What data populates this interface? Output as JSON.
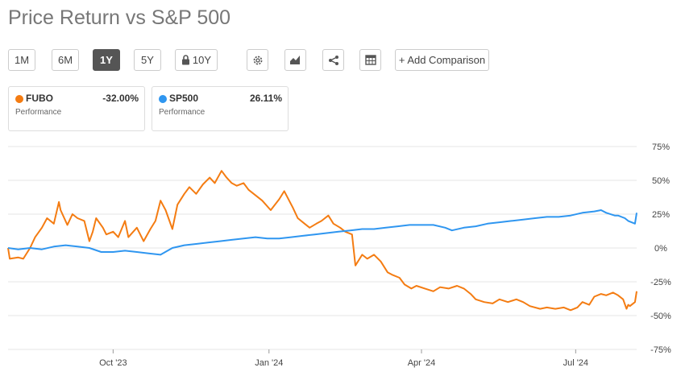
{
  "title": "Price Return vs S&P 500",
  "toolbar": {
    "ranges": [
      {
        "label": "1M",
        "active": false
      },
      {
        "label": "6M",
        "active": false
      },
      {
        "label": "1Y",
        "active": true
      },
      {
        "label": "5Y",
        "active": false
      },
      {
        "label": "10Y",
        "active": false,
        "locked": true
      }
    ],
    "icons": [
      "gear-icon",
      "chart-type-icon",
      "share-icon",
      "table-icon"
    ],
    "add_comparison": "+ Add Comparison"
  },
  "cards": [
    {
      "name": "FUBO",
      "value": "-32.00%",
      "sub": "Performance",
      "color": "#f47c12"
    },
    {
      "name": "SP500",
      "value": "26.11%",
      "sub": "Performance",
      "color": "#2f96f0"
    }
  ],
  "chart_data": {
    "type": "line",
    "x_unit": "date",
    "x_range": [
      "2023-08-01",
      "2024-08-06"
    ],
    "x_ticks": [
      {
        "label": "Oct '23",
        "date": "2023-10-02"
      },
      {
        "label": "Jan '24",
        "date": "2024-01-02"
      },
      {
        "label": "Apr '24",
        "date": "2024-04-01"
      },
      {
        "label": "Jul '24",
        "date": "2024-07-01"
      }
    ],
    "ylim": [
      -75,
      75
    ],
    "y_ticks": [
      75,
      50,
      25,
      0,
      -25,
      -50,
      -75
    ],
    "y_tick_labels": [
      "75%",
      "50%",
      "25%",
      "0%",
      "-25%",
      "-50%",
      "-75%"
    ],
    "grid": true,
    "series": [
      {
        "name": "FUBO",
        "color": "#f47c12",
        "points": [
          [
            "2023-08-01",
            0
          ],
          [
            "2023-08-02",
            -8
          ],
          [
            "2023-08-07",
            -7
          ],
          [
            "2023-08-10",
            -8
          ],
          [
            "2023-08-14",
            0
          ],
          [
            "2023-08-17",
            8
          ],
          [
            "2023-08-21",
            15
          ],
          [
            "2023-08-24",
            22
          ],
          [
            "2023-08-28",
            18
          ],
          [
            "2023-08-31",
            34
          ],
          [
            "2023-09-01",
            28
          ],
          [
            "2023-09-05",
            17
          ],
          [
            "2023-09-08",
            25
          ],
          [
            "2023-09-11",
            22
          ],
          [
            "2023-09-15",
            20
          ],
          [
            "2023-09-18",
            5
          ],
          [
            "2023-09-20",
            12
          ],
          [
            "2023-09-22",
            22
          ],
          [
            "2023-09-26",
            15
          ],
          [
            "2023-09-28",
            10
          ],
          [
            "2023-10-02",
            12
          ],
          [
            "2023-10-05",
            8
          ],
          [
            "2023-10-09",
            20
          ],
          [
            "2023-10-11",
            8
          ],
          [
            "2023-10-16",
            15
          ],
          [
            "2023-10-20",
            5
          ],
          [
            "2023-10-24",
            14
          ],
          [
            "2023-10-27",
            20
          ],
          [
            "2023-10-30",
            35
          ],
          [
            "2023-11-02",
            28
          ],
          [
            "2023-11-06",
            14
          ],
          [
            "2023-11-09",
            32
          ],
          [
            "2023-11-13",
            40
          ],
          [
            "2023-11-16",
            45
          ],
          [
            "2023-11-20",
            40
          ],
          [
            "2023-11-24",
            47
          ],
          [
            "2023-11-28",
            52
          ],
          [
            "2023-12-01",
            48
          ],
          [
            "2023-12-05",
            57
          ],
          [
            "2023-12-08",
            52
          ],
          [
            "2023-12-11",
            48
          ],
          [
            "2023-12-14",
            46
          ],
          [
            "2023-12-18",
            48
          ],
          [
            "2023-12-21",
            43
          ],
          [
            "2023-12-26",
            38
          ],
          [
            "2023-12-29",
            35
          ],
          [
            "2024-01-03",
            28
          ],
          [
            "2024-01-08",
            36
          ],
          [
            "2024-01-11",
            42
          ],
          [
            "2024-01-16",
            30
          ],
          [
            "2024-01-19",
            22
          ],
          [
            "2024-01-23",
            18
          ],
          [
            "2024-01-26",
            15
          ],
          [
            "2024-01-30",
            18
          ],
          [
            "2024-02-02",
            20
          ],
          [
            "2024-02-06",
            24
          ],
          [
            "2024-02-09",
            18
          ],
          [
            "2024-02-13",
            15
          ],
          [
            "2024-02-16",
            12
          ],
          [
            "2024-02-20",
            10
          ],
          [
            "2024-02-22",
            -13
          ],
          [
            "2024-02-26",
            -5
          ],
          [
            "2024-02-29",
            -8
          ],
          [
            "2024-03-04",
            -5
          ],
          [
            "2024-03-08",
            -10
          ],
          [
            "2024-03-12",
            -18
          ],
          [
            "2024-03-15",
            -20
          ],
          [
            "2024-03-19",
            -22
          ],
          [
            "2024-03-22",
            -27
          ],
          [
            "2024-03-26",
            -30
          ],
          [
            "2024-03-29",
            -28
          ],
          [
            "2024-04-03",
            -30
          ],
          [
            "2024-04-08",
            -32
          ],
          [
            "2024-04-12",
            -29
          ],
          [
            "2024-04-17",
            -30
          ],
          [
            "2024-04-22",
            -28
          ],
          [
            "2024-04-26",
            -30
          ],
          [
            "2024-04-30",
            -34
          ],
          [
            "2024-05-03",
            -38
          ],
          [
            "2024-05-08",
            -40
          ],
          [
            "2024-05-13",
            -41
          ],
          [
            "2024-05-17",
            -38
          ],
          [
            "2024-05-22",
            -40
          ],
          [
            "2024-05-27",
            -38
          ],
          [
            "2024-05-31",
            -40
          ],
          [
            "2024-06-04",
            -43
          ],
          [
            "2024-06-10",
            -45
          ],
          [
            "2024-06-14",
            -44
          ],
          [
            "2024-06-19",
            -45
          ],
          [
            "2024-06-24",
            -44
          ],
          [
            "2024-06-28",
            -46
          ],
          [
            "2024-07-02",
            -44
          ],
          [
            "2024-07-05",
            -40
          ],
          [
            "2024-07-09",
            -42
          ],
          [
            "2024-07-12",
            -36
          ],
          [
            "2024-07-16",
            -34
          ],
          [
            "2024-07-19",
            -35
          ],
          [
            "2024-07-23",
            -33
          ],
          [
            "2024-07-26",
            -35
          ],
          [
            "2024-07-29",
            -38
          ],
          [
            "2024-07-31",
            -45
          ],
          [
            "2024-08-01",
            -42
          ],
          [
            "2024-08-02",
            -43
          ],
          [
            "2024-08-05",
            -40
          ],
          [
            "2024-08-06",
            -32
          ]
        ]
      },
      {
        "name": "SP500",
        "color": "#2f96f0",
        "points": [
          [
            "2023-08-01",
            0
          ],
          [
            "2023-08-07",
            -1
          ],
          [
            "2023-08-14",
            0
          ],
          [
            "2023-08-21",
            -1
          ],
          [
            "2023-08-28",
            1
          ],
          [
            "2023-09-04",
            2
          ],
          [
            "2023-09-11",
            1
          ],
          [
            "2023-09-18",
            0
          ],
          [
            "2023-09-25",
            -3
          ],
          [
            "2023-10-02",
            -3
          ],
          [
            "2023-10-09",
            -2
          ],
          [
            "2023-10-16",
            -3
          ],
          [
            "2023-10-23",
            -4
          ],
          [
            "2023-10-30",
            -5
          ],
          [
            "2023-11-06",
            0
          ],
          [
            "2023-11-13",
            2
          ],
          [
            "2023-11-20",
            3
          ],
          [
            "2023-11-27",
            4
          ],
          [
            "2023-12-04",
            5
          ],
          [
            "2023-12-11",
            6
          ],
          [
            "2023-12-18",
            7
          ],
          [
            "2023-12-25",
            8
          ],
          [
            "2024-01-01",
            7
          ],
          [
            "2024-01-08",
            7
          ],
          [
            "2024-01-15",
            8
          ],
          [
            "2024-01-22",
            9
          ],
          [
            "2024-01-29",
            10
          ],
          [
            "2024-02-05",
            11
          ],
          [
            "2024-02-12",
            12
          ],
          [
            "2024-02-19",
            13
          ],
          [
            "2024-02-26",
            14
          ],
          [
            "2024-03-04",
            14
          ],
          [
            "2024-03-11",
            15
          ],
          [
            "2024-03-18",
            16
          ],
          [
            "2024-03-25",
            17
          ],
          [
            "2024-04-01",
            17
          ],
          [
            "2024-04-08",
            17
          ],
          [
            "2024-04-15",
            15
          ],
          [
            "2024-04-19",
            13
          ],
          [
            "2024-04-26",
            15
          ],
          [
            "2024-05-03",
            16
          ],
          [
            "2024-05-10",
            18
          ],
          [
            "2024-05-17",
            19
          ],
          [
            "2024-05-24",
            20
          ],
          [
            "2024-05-31",
            21
          ],
          [
            "2024-06-07",
            22
          ],
          [
            "2024-06-14",
            23
          ],
          [
            "2024-06-21",
            23
          ],
          [
            "2024-06-28",
            24
          ],
          [
            "2024-07-05",
            26
          ],
          [
            "2024-07-12",
            27
          ],
          [
            "2024-07-16",
            28
          ],
          [
            "2024-07-19",
            26
          ],
          [
            "2024-07-24",
            24
          ],
          [
            "2024-07-26",
            24
          ],
          [
            "2024-07-30",
            22
          ],
          [
            "2024-08-01",
            20
          ],
          [
            "2024-08-05",
            18
          ],
          [
            "2024-08-06",
            26
          ]
        ]
      }
    ]
  }
}
